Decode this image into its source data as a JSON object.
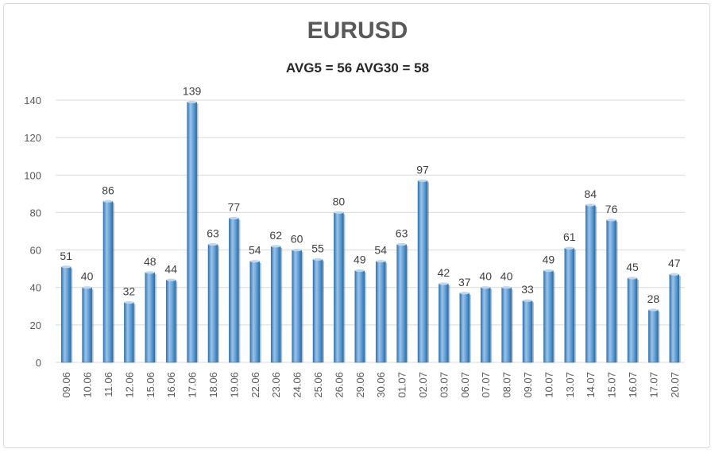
{
  "chart_data": {
    "type": "bar",
    "title": "EURUSD",
    "subtitle": "AVG5 = 56 AVG30 = 58",
    "xlabel": "",
    "ylabel": "",
    "ylim": [
      0,
      140
    ],
    "yticks": [
      0,
      20,
      40,
      60,
      80,
      100,
      120,
      140
    ],
    "grid": true,
    "categories": [
      "09.06",
      "10.06",
      "11.06",
      "12.06",
      "15.06",
      "16.06",
      "17.06",
      "18.06",
      "19.06",
      "22.06",
      "23.06",
      "24.06",
      "25.06",
      "26.06",
      "29.06",
      "30.06",
      "01.07",
      "02.07",
      "03.07",
      "06.07",
      "07.07",
      "08.07",
      "09.07",
      "10.07",
      "13.07",
      "14.07",
      "15.07",
      "16.07",
      "17.07",
      "20.07"
    ],
    "values": [
      51,
      40,
      86,
      32,
      48,
      44,
      139,
      63,
      77,
      54,
      62,
      60,
      55,
      80,
      49,
      54,
      63,
      97,
      42,
      37,
      40,
      40,
      33,
      49,
      61,
      84,
      76,
      45,
      28,
      47
    ],
    "colors": {
      "bar": "#5b9bd5",
      "bar_dark": "#2e75b6",
      "bar_light": "#9dc3e6",
      "grid": "#d9d9d9"
    }
  }
}
